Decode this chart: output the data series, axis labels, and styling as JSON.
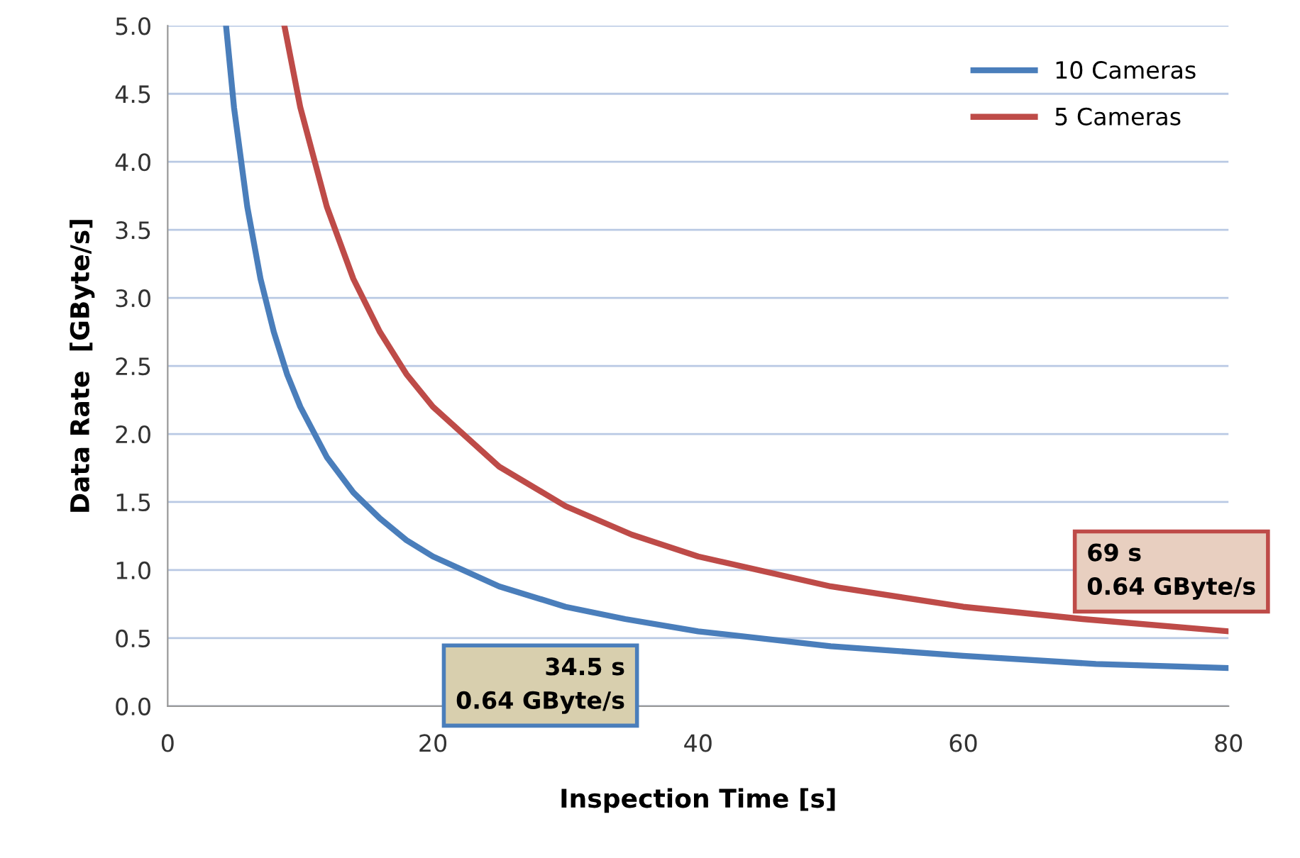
{
  "chart_data": {
    "type": "line",
    "xlabel": "Inspection Time [s]",
    "ylabel": "Data Rate  [GByte/s]",
    "series": [
      {
        "name": "10 Cameras",
        "color": "#4a7ebb",
        "x": [
          4.4,
          5,
          6,
          7,
          8,
          9,
          10,
          12,
          14,
          16,
          18,
          20,
          25,
          30,
          34.5,
          40,
          50,
          60,
          70,
          80
        ],
        "values": [
          5.0,
          4.4,
          3.67,
          3.14,
          2.75,
          2.44,
          2.2,
          1.83,
          1.57,
          1.38,
          1.22,
          1.1,
          0.88,
          0.73,
          0.64,
          0.55,
          0.44,
          0.37,
          0.31,
          0.28
        ]
      },
      {
        "name": "5 Cameras",
        "color": "#be4b48",
        "x": [
          8.8,
          10,
          12,
          14,
          16,
          18,
          20,
          25,
          30,
          35,
          40,
          50,
          60,
          69,
          80
        ],
        "values": [
          5.0,
          4.4,
          3.67,
          3.14,
          2.75,
          2.44,
          2.2,
          1.76,
          1.47,
          1.26,
          1.1,
          0.88,
          0.73,
          0.64,
          0.55
        ]
      }
    ],
    "xlim": [
      0,
      80
    ],
    "xticks": [
      0,
      20,
      40,
      60,
      80
    ],
    "ylim": [
      0,
      5
    ],
    "yticks": [
      {
        "value": 0,
        "label": "0.0"
      },
      {
        "value": 0.5,
        "label": "0.5"
      },
      {
        "value": 1,
        "label": "1.0"
      },
      {
        "value": 1.5,
        "label": "1.5"
      },
      {
        "value": 2,
        "label": "2.0"
      },
      {
        "value": 2.5,
        "label": "2.5"
      },
      {
        "value": 3,
        "label": "3.0"
      },
      {
        "value": 3.5,
        "label": "3.5"
      },
      {
        "value": 4,
        "label": "4.0"
      },
      {
        "value": 4.5,
        "label": "4.5"
      },
      {
        "value": 5,
        "label": "5.0"
      }
    ],
    "annotations": [
      {
        "text": "34.5 s\n0.64 GByte/s",
        "x": 34.5,
        "y": 0.64
      },
      {
        "text": "69 s\n0.64 GByte/s",
        "x": 69,
        "y": 0.64
      }
    ],
    "grid": "y",
    "legend": "top right",
    "marker": "none",
    "line_style": "solid"
  }
}
